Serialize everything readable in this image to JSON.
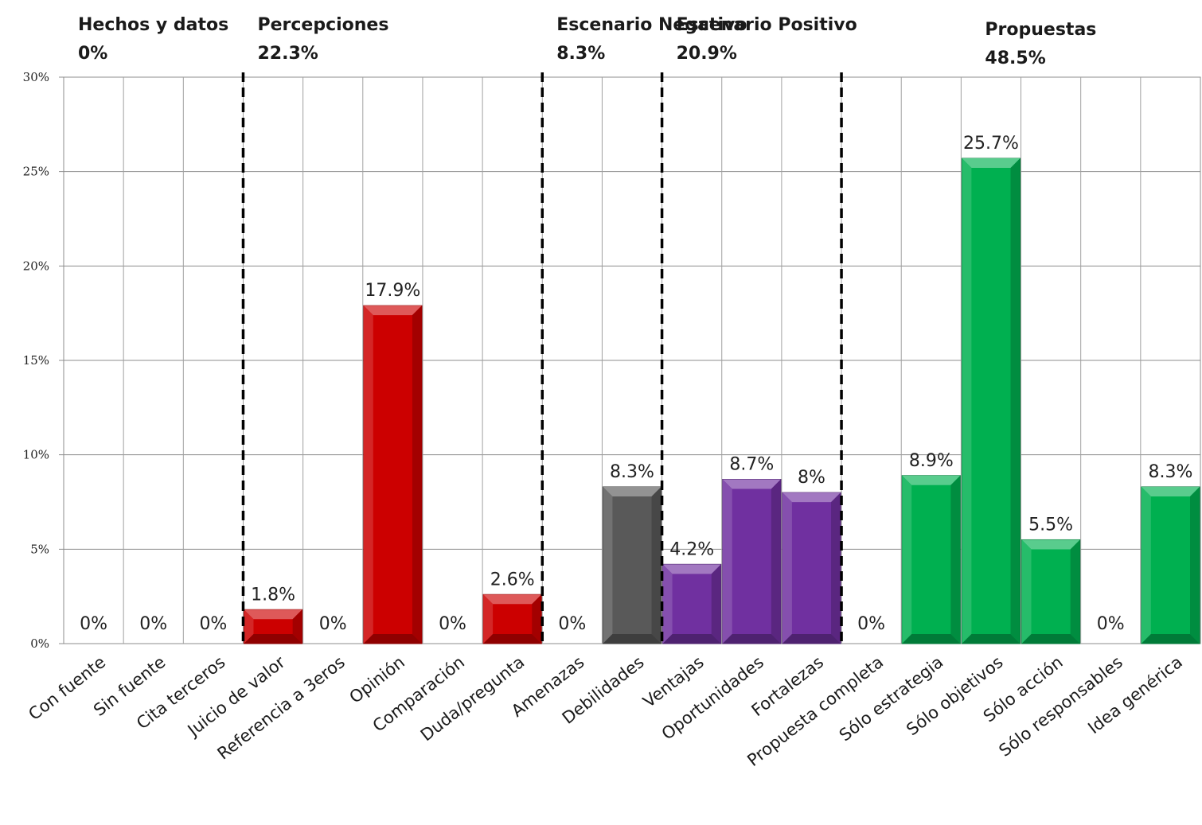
{
  "chart_data": {
    "type": "bar",
    "ylim": [
      0,
      30
    ],
    "yticks": [
      0,
      5,
      10,
      15,
      20,
      25,
      30
    ],
    "ytick_labels": [
      "0%",
      "5%",
      "10%",
      "15%",
      "20%",
      "25%",
      "30%"
    ],
    "grid": true,
    "categories": [
      "Con fuente",
      "Sin fuente",
      "Cita terceros",
      "Juicio de valor",
      "Referencia a 3eros",
      "Opinión",
      "Comparación",
      "Duda/pregunta",
      "Amenazas",
      "Debilidades",
      "Ventajas",
      "Oportunidades",
      "Fortalezas",
      "Propuesta completa",
      "Sólo estrategia",
      "Sólo objetivos",
      "Sólo acción",
      "Sólo responsables",
      "Idea genérica"
    ],
    "values": [
      0,
      0,
      0,
      1.8,
      0,
      17.9,
      0,
      2.6,
      0,
      8.3,
      4.2,
      8.7,
      8,
      0,
      8.9,
      25.7,
      5.5,
      0,
      8.3
    ],
    "data_labels": [
      "0%",
      "0%",
      "0%",
      "1.8%",
      "0%",
      "17.9%",
      "0%",
      "2.6%",
      "0%",
      "8.3%",
      "4.2%",
      "8.7%",
      "8%",
      "0%",
      "8.9%",
      "25.7%",
      "5.5%",
      "0%",
      "8.3%"
    ],
    "colors": [
      "#cc0000",
      "#cc0000",
      "#cc0000",
      "#cc0000",
      "#cc0000",
      "#cc0000",
      "#cc0000",
      "#cc0000",
      "#595959",
      "#595959",
      "#7030a0",
      "#7030a0",
      "#7030a0",
      "#00b050",
      "#00b050",
      "#00b050",
      "#00b050",
      "#00b050",
      "#00b050"
    ],
    "groups": [
      {
        "name": "Hechos y datos",
        "pct": "0%",
        "start": 0,
        "end": 3
      },
      {
        "name": "Percepciones",
        "pct": "22.3%",
        "start": 3,
        "end": 8
      },
      {
        "name": "Escenario Negativo",
        "pct": "8.3%",
        "start": 8,
        "end": 10
      },
      {
        "name": "Escenario Positivo",
        "pct": "20.9%",
        "start": 10,
        "end": 13
      },
      {
        "name": "Propuestas",
        "pct": "48.5%",
        "start": 13,
        "end": 19
      }
    ],
    "dividers_after_index": [
      2,
      7,
      9,
      12
    ]
  }
}
